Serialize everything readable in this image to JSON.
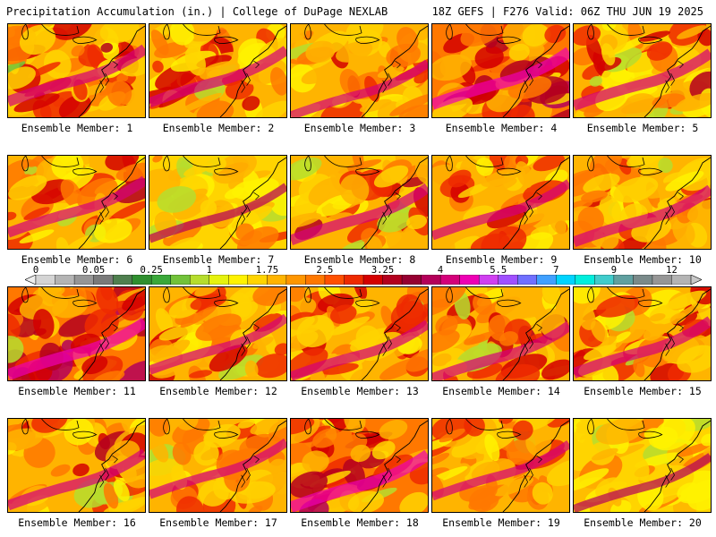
{
  "header": {
    "left": "Precipitation Accumulation (in.) | College of DuPage NEXLAB",
    "right": "18Z GEFS | F276 Valid: 06Z THU JUN 19 2025"
  },
  "panels": [
    {
      "label": "Ensemble Member: 1",
      "intensity": 0.62,
      "seed": 11
    },
    {
      "label": "Ensemble Member: 2",
      "intensity": 0.55,
      "seed": 23
    },
    {
      "label": "Ensemble Member: 3",
      "intensity": 0.4,
      "seed": 37
    },
    {
      "label": "Ensemble Member: 4",
      "intensity": 0.68,
      "seed": 41
    },
    {
      "label": "Ensemble Member: 5",
      "intensity": 0.6,
      "seed": 53
    },
    {
      "label": "Ensemble Member: 6",
      "intensity": 0.55,
      "seed": 67
    },
    {
      "label": "Ensemble Member: 7",
      "intensity": 0.35,
      "seed": 71
    },
    {
      "label": "Ensemble Member: 8",
      "intensity": 0.6,
      "seed": 83
    },
    {
      "label": "Ensemble Member: 9",
      "intensity": 0.45,
      "seed": 97
    },
    {
      "label": "Ensemble Member: 10",
      "intensity": 0.62,
      "seed": 101
    },
    {
      "label": "Ensemble Member: 11",
      "intensity": 0.7,
      "seed": 113
    },
    {
      "label": "Ensemble Member: 12",
      "intensity": 0.45,
      "seed": 127
    },
    {
      "label": "Ensemble Member: 13",
      "intensity": 0.5,
      "seed": 131
    },
    {
      "label": "Ensemble Member: 14",
      "intensity": 0.58,
      "seed": 149
    },
    {
      "label": "Ensemble Member: 15",
      "intensity": 0.62,
      "seed": 157
    },
    {
      "label": "Ensemble Member: 16",
      "intensity": 0.55,
      "seed": 163
    },
    {
      "label": "Ensemble Member: 17",
      "intensity": 0.42,
      "seed": 173
    },
    {
      "label": "Ensemble Member: 18",
      "intensity": 0.7,
      "seed": 181
    },
    {
      "label": "Ensemble Member: 19",
      "intensity": 0.38,
      "seed": 191
    },
    {
      "label": "Ensemble Member: 20",
      "intensity": 0.35,
      "seed": 199
    }
  ],
  "colorbar": {
    "tick_labels": [
      "0",
      "0.05",
      "0.25",
      "1",
      "1.75",
      "2.5",
      "3.25",
      "4",
      "5.5",
      "7",
      "9",
      "12"
    ],
    "colors": [
      "#d4d4d4",
      "#b4b4b4",
      "#969696",
      "#7a7a7a",
      "#4f7f4f",
      "#2f8f2f",
      "#3aa83a",
      "#72c23a",
      "#b6dd2e",
      "#e6f20e",
      "#fff200",
      "#ffd400",
      "#ffb400",
      "#ff9600",
      "#ff7800",
      "#ff5000",
      "#ee2a00",
      "#d40000",
      "#b4001e",
      "#960032",
      "#b4005a",
      "#d4007a",
      "#ee00b4",
      "#d040f0",
      "#a050ff",
      "#7070ff",
      "#40a0ff",
      "#00d4ff",
      "#00eedd",
      "#40cccc",
      "#60a0a0",
      "#7a8a8a",
      "#969696",
      "#b4b4b4"
    ]
  }
}
